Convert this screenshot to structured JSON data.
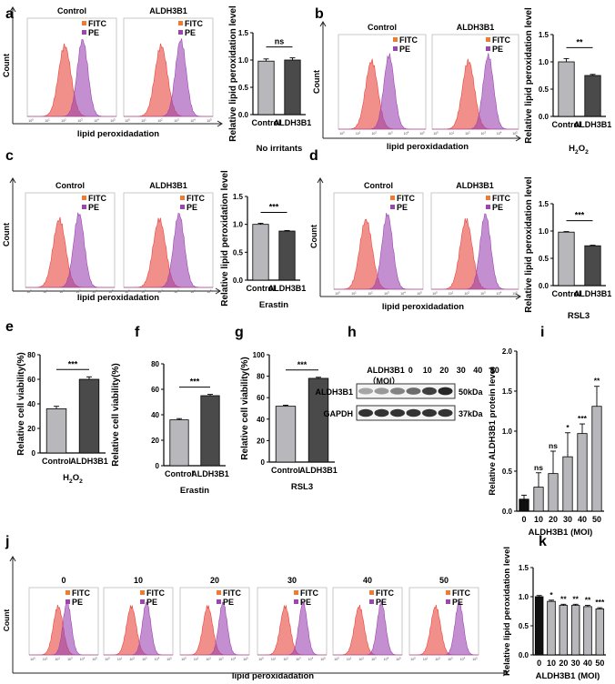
{
  "colors": {
    "fitc": "#e8453c",
    "pe": "#9b45b0",
    "fitc_legend": "#f07a30",
    "bar_light": "#b8b8bc",
    "bar_dark": "#4a4a4a",
    "bar_black": "#101010"
  },
  "labels": {
    "fitc": "FITC",
    "pe": "PE",
    "count": "Count",
    "lipid": "lipid peroxidadation",
    "rel_lipid": "Relative lipid peroxidation level",
    "rel_via": "Relative cell viability(%)",
    "rel_prot": "Relative ALDH3B1 protein level",
    "control": "Control",
    "aldh": "ALDH3B1",
    "moi_axis": "ALDH3B1 (MOI)"
  },
  "chart_data": [
    {
      "id": "a",
      "type": "bar",
      "title": "No irritants",
      "panel_titles": [
        "Control",
        "ALDH3B1"
      ],
      "categories": [
        "Control",
        "ALDH3B1"
      ],
      "values": [
        0.98,
        1.0
      ],
      "errors": [
        0.04,
        0.04
      ],
      "ylabel": "Relative lipid peroxidation level",
      "ylim": [
        0,
        1.5
      ],
      "yticks": [
        "0.0",
        "0.5",
        "1.0",
        "1.5"
      ],
      "significance": "ns"
    },
    {
      "id": "b",
      "type": "bar",
      "title_main": "H",
      "title_sub": "2",
      "title_tail": "O",
      "title_sub2": "2",
      "panel_titles": [
        "Control",
        "ALDH3B1"
      ],
      "categories": [
        "Control",
        "ALDH3B1"
      ],
      "values": [
        1.0,
        0.75
      ],
      "errors": [
        0.06,
        0.02
      ],
      "ylabel": "Relative lipid peroxidation level",
      "ylim": [
        0,
        1.5
      ],
      "yticks": [
        "0.0",
        "0.5",
        "1.0",
        "1.5"
      ],
      "significance": "**"
    },
    {
      "id": "c",
      "type": "bar",
      "title": "Erastin",
      "panel_titles": [
        "Control",
        "ALDH3B1"
      ],
      "categories": [
        "Control",
        "ALDH3B1"
      ],
      "values": [
        1.0,
        0.88
      ],
      "errors": [
        0.02,
        0.01
      ],
      "ylabel": "Relative lipid peroxidation level",
      "ylim": [
        0,
        1.5
      ],
      "yticks": [
        "0.0",
        "0.5",
        "1.0",
        "1.5"
      ],
      "significance": "***"
    },
    {
      "id": "d",
      "type": "bar",
      "title": "RSL3",
      "panel_titles": [
        "Control",
        "ALDH3B1"
      ],
      "categories": [
        "Control",
        "ALDH3B1"
      ],
      "values": [
        0.98,
        0.73
      ],
      "errors": [
        0.01,
        0.01
      ],
      "ylabel": "Relative lipid peroxidation level",
      "ylim": [
        0,
        1.5
      ],
      "yticks": [
        "0.0",
        "0.5",
        "1.0",
        "1.5"
      ],
      "significance": "***"
    },
    {
      "id": "e",
      "type": "bar",
      "title_main": "H",
      "title_sub": "2",
      "title_tail": "O",
      "title_sub2": "2",
      "categories": [
        "Control",
        "ALDH3B1"
      ],
      "values": [
        36,
        60
      ],
      "errors": [
        2,
        2
      ],
      "ylabel": "Relative cell viability(%)",
      "ylim": [
        0,
        80
      ],
      "yticks": [
        "0",
        "20",
        "40",
        "60",
        "80"
      ],
      "significance": "***"
    },
    {
      "id": "f",
      "type": "bar",
      "title": "Erastin",
      "categories": [
        "Control",
        "ALDH3B1"
      ],
      "values": [
        36,
        55
      ],
      "errors": [
        1,
        1
      ],
      "ylabel": "Relative cell viability(%)",
      "ylim": [
        0,
        80
      ],
      "yticks": [
        "0",
        "20",
        "40",
        "60",
        "80"
      ],
      "significance": "***"
    },
    {
      "id": "g",
      "type": "bar",
      "title": "RSL3",
      "categories": [
        "Control",
        "ALDH3B1"
      ],
      "values": [
        52,
        78
      ],
      "errors": [
        1,
        1
      ],
      "ylabel": "Relative cell viability(%)",
      "ylim": [
        0,
        100
      ],
      "yticks": [
        "0",
        "20",
        "40",
        "60",
        "80",
        "100"
      ],
      "significance": "***"
    },
    {
      "id": "i",
      "type": "bar",
      "categories": [
        "0",
        "10",
        "20",
        "30",
        "40",
        "50"
      ],
      "values": [
        0.15,
        0.3,
        0.47,
        0.68,
        0.97,
        1.31
      ],
      "errors": [
        0.05,
        0.18,
        0.28,
        0.3,
        0.12,
        0.25
      ],
      "significance": [
        "",
        "ns",
        "ns",
        "*",
        "***",
        "**"
      ],
      "ylabel": "Relative ALDH3B1 protein level",
      "ylim": [
        0,
        2.0
      ],
      "yticks": [
        "0.0",
        "0.5",
        "1.0",
        "1.5",
        "2.0"
      ],
      "xlabel": "ALDH3B1 (MOI)"
    },
    {
      "id": "k",
      "type": "bar",
      "categories": [
        "0",
        "10",
        "20",
        "30",
        "40",
        "50"
      ],
      "values": [
        1.0,
        0.92,
        0.85,
        0.85,
        0.83,
        0.79
      ],
      "errors": [
        0.02,
        0.02,
        0.02,
        0.02,
        0.02,
        0.02
      ],
      "significance": [
        "",
        "*",
        "**",
        "**",
        "**",
        "***"
      ],
      "ylabel": "Relative lipid peroxidation level",
      "ylim": [
        0,
        1.5
      ],
      "yticks": [
        "0.0",
        "0.5",
        "1.0",
        "1.5"
      ],
      "xlabel": "ALDH3B1 (MOI)"
    }
  ],
  "flow_panels": {
    "j": {
      "titles": [
        "0",
        "10",
        "20",
        "30",
        "40",
        "50"
      ],
      "xlabel": "lipid peroxidadation"
    }
  },
  "western": {
    "header": "ALDH3B1",
    "header2": "（MOI）",
    "moi": [
      "0",
      "10",
      "20",
      "30",
      "40",
      "50"
    ],
    "rows": [
      {
        "label": "ALDH3B1",
        "size": "50kDa",
        "intensities": [
          0.35,
          0.4,
          0.5,
          0.6,
          0.8,
          0.9
        ]
      },
      {
        "label": "GAPDH",
        "size": "37kDa",
        "intensities": [
          0.85,
          0.85,
          0.85,
          0.85,
          0.85,
          0.85
        ]
      }
    ]
  },
  "panel_letters": [
    "a",
    "b",
    "c",
    "d",
    "e",
    "f",
    "g",
    "h",
    "i",
    "j",
    "k"
  ],
  "axis_ticks": {
    "flow_x": [
      "10",
      "10",
      "10",
      "10",
      "10",
      "10"
    ],
    "flow_x_exp": [
      "0",
      "1",
      "2",
      "3",
      "4",
      "5"
    ]
  }
}
